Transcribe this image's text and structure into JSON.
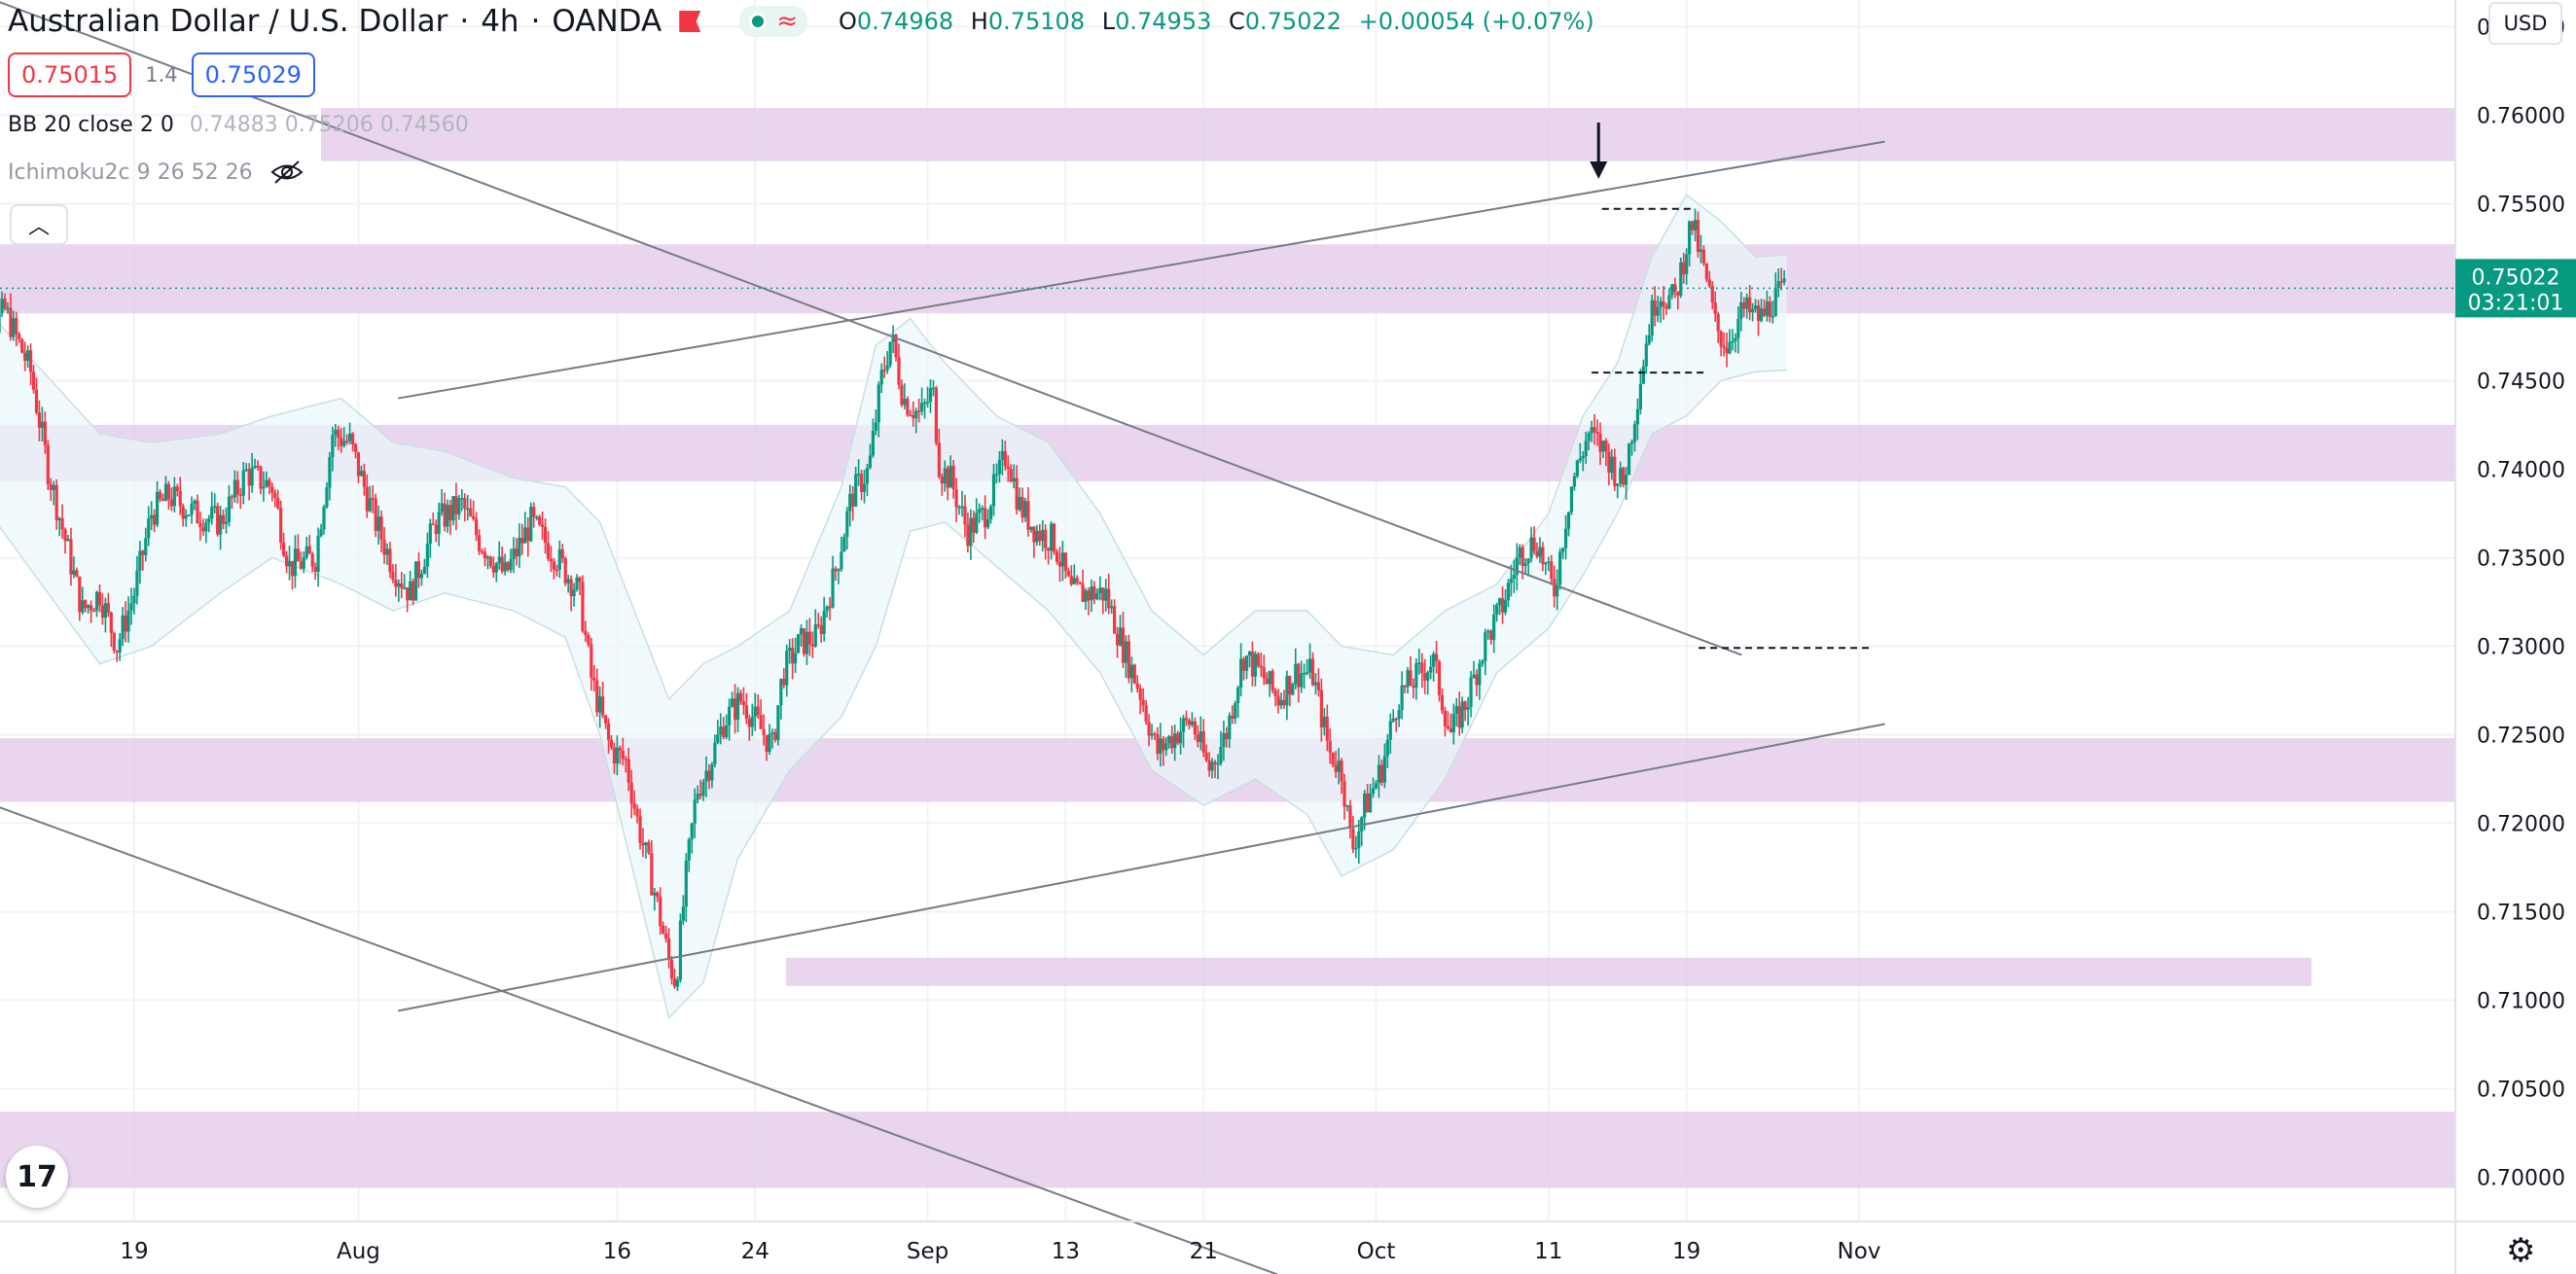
{
  "header": {
    "symbol": "Australian Dollar / U.S. Dollar",
    "interval": "4h",
    "broker": "OANDA",
    "ohlc": {
      "o_label": "O",
      "o": "0.74968",
      "h_label": "H",
      "h": "0.75108",
      "l_label": "L",
      "l": "0.74953",
      "c_label": "C",
      "c": "0.75022",
      "change": "+0.00054 (+0.07%)"
    },
    "sell_price": "0.75015",
    "spread": "1.4",
    "buy_price": "0.75029"
  },
  "indicators": {
    "bb_label": "BB 20 close 2 0",
    "bb_values": "0.74883  0.75206  0.74560",
    "ichimoku_label": "Ichimoku2c 9 26 52 26",
    "visibility_icon": "eye-off-icon"
  },
  "price_axis": {
    "currency": "USD",
    "last_price": "0.75022",
    "countdown": "03:21:01"
  },
  "colors": {
    "up": "#089981",
    "down": "#f23645",
    "zone": "#e1c6e8",
    "band": "#e9f7f9",
    "trendline": "#787b86"
  },
  "chart_data": {
    "type": "candlestick",
    "symbol": "AUD/USD",
    "timeframe": "4h",
    "ylim": [
      0.6975,
      0.7665
    ],
    "y_ticks": [
      "0.76500",
      "0.76000",
      "0.75500",
      "0.75000",
      "0.74500",
      "0.74000",
      "0.73500",
      "0.73000",
      "0.72500",
      "0.72000",
      "0.71500",
      "0.71000",
      "0.70500",
      "0.70000"
    ],
    "x_ticks": [
      "19",
      "Aug",
      "16",
      "24",
      "Sep",
      "13",
      "21",
      "Oct",
      "11",
      "19",
      "Nov"
    ],
    "last_price": 0.75022,
    "zones": [
      {
        "from": 0.7574,
        "to": 0.7604
      },
      {
        "from": 0.7488,
        "to": 0.7527
      },
      {
        "from": 0.7393,
        "to": 0.7425
      },
      {
        "from": 0.7212,
        "to": 0.7248
      },
      {
        "from": 0.7108,
        "to": 0.7124
      },
      {
        "from": 0.6994,
        "to": 0.7037
      }
    ],
    "trendlines": [
      {
        "from_day": -7.5,
        "from_price": 0.767,
        "to_day": 95.2,
        "to_price": 0.7295
      },
      {
        "from_day": -7.5,
        "from_price": 0.7215,
        "to_day": 68.3,
        "to_price": 0.6945
      },
      {
        "from_day": 17.3,
        "from_price": 0.7094,
        "to_day": 103.5,
        "to_price": 0.7256
      },
      {
        "from_day": 17.3,
        "from_price": 0.744,
        "to_day": 103.5,
        "to_price": 0.7585
      }
    ],
    "levels": [
      {
        "from_day": 87.1,
        "to_day": 92.4,
        "price": 0.7547
      },
      {
        "from_day": 86.5,
        "to_day": 93.1,
        "price": 0.74545
      },
      {
        "from_day": 92.7,
        "to_day": 102.8,
        "price": 0.7299
      }
    ],
    "arrow_day": 86.9,
    "arrow_price": 0.7565,
    "day_origin": "Jul 17",
    "anchors": [
      [
        -7.5,
        0.7445
      ],
      [
        -6.5,
        0.7475
      ],
      [
        -5.5,
        0.749
      ],
      [
        -4,
        0.7455
      ],
      [
        -3,
        0.74
      ],
      [
        -2,
        0.736
      ],
      [
        -1,
        0.732
      ],
      [
        0,
        0.733
      ],
      [
        1,
        0.73
      ],
      [
        2,
        0.733
      ],
      [
        3,
        0.7375
      ],
      [
        4,
        0.7385
      ],
      [
        5.5,
        0.7375
      ],
      [
        7,
        0.737
      ],
      [
        8.5,
        0.7398
      ],
      [
        10,
        0.739
      ],
      [
        11,
        0.7345
      ],
      [
        12.5,
        0.735
      ],
      [
        13.5,
        0.742
      ],
      [
        14.5,
        0.7415
      ],
      [
        16,
        0.737
      ],
      [
        17,
        0.7345
      ],
      [
        18,
        0.733
      ],
      [
        19.5,
        0.737
      ],
      [
        21,
        0.738
      ],
      [
        22,
        0.736
      ],
      [
        23.5,
        0.734
      ],
      [
        25,
        0.737
      ],
      [
        26.5,
        0.735
      ],
      [
        27.8,
        0.733
      ],
      [
        28.5,
        0.7282
      ],
      [
        29.6,
        0.7242
      ],
      [
        30.5,
        0.7235
      ],
      [
        31.2,
        0.72
      ],
      [
        32.2,
        0.716
      ],
      [
        33,
        0.7122
      ],
      [
        33.4,
        0.711
      ],
      [
        34,
        0.717
      ],
      [
        34.6,
        0.7218
      ],
      [
        35.3,
        0.7232
      ],
      [
        36.2,
        0.7258
      ],
      [
        37.2,
        0.727
      ],
      [
        38,
        0.7258
      ],
      [
        39,
        0.7243
      ],
      [
        39.6,
        0.7285
      ],
      [
        40.6,
        0.7302
      ],
      [
        41.6,
        0.7305
      ],
      [
        42.6,
        0.734
      ],
      [
        43.6,
        0.7385
      ],
      [
        44.6,
        0.74
      ],
      [
        45.3,
        0.745
      ],
      [
        45.9,
        0.7475
      ],
      [
        46.6,
        0.744
      ],
      [
        47.6,
        0.743
      ],
      [
        48.3,
        0.7445
      ],
      [
        48.7,
        0.74
      ],
      [
        49.3,
        0.7395
      ],
      [
        50.3,
        0.7365
      ],
      [
        51.3,
        0.7375
      ],
      [
        51.9,
        0.739
      ],
      [
        52.6,
        0.741
      ],
      [
        53.3,
        0.738
      ],
      [
        54.3,
        0.7365
      ],
      [
        55.3,
        0.736
      ],
      [
        56.3,
        0.733
      ],
      [
        57.3,
        0.733
      ],
      [
        58.3,
        0.733
      ],
      [
        59.3,
        0.73
      ],
      [
        60.3,
        0.7275
      ],
      [
        61.3,
        0.724
      ],
      [
        62.3,
        0.725
      ],
      [
        63.3,
        0.7258
      ],
      [
        64.3,
        0.723
      ],
      [
        65.3,
        0.725
      ],
      [
        66.3,
        0.7295
      ],
      [
        67.3,
        0.7285
      ],
      [
        68.3,
        0.727
      ],
      [
        69.3,
        0.7285
      ],
      [
        70.3,
        0.7285
      ],
      [
        71.3,
        0.724
      ],
      [
        72,
        0.723
      ],
      [
        72.6,
        0.7185
      ],
      [
        73.3,
        0.7208
      ],
      [
        74.3,
        0.723
      ],
      [
        75.3,
        0.7272
      ],
      [
        76.3,
        0.7282
      ],
      [
        77.3,
        0.7292
      ],
      [
        78.3,
        0.725
      ],
      [
        79.3,
        0.727
      ],
      [
        80.3,
        0.7302
      ],
      [
        81.3,
        0.7322
      ],
      [
        82.3,
        0.7352
      ],
      [
        83.3,
        0.736
      ],
      [
        84.3,
        0.733
      ],
      [
        85.3,
        0.739
      ],
      [
        86.3,
        0.742
      ],
      [
        87.3,
        0.741
      ],
      [
        88.3,
        0.739
      ],
      [
        89.3,
        0.745
      ],
      [
        89.8,
        0.748
      ],
      [
        90.3,
        0.75
      ],
      [
        91.3,
        0.7495
      ],
      [
        92.3,
        0.754
      ],
      [
        93.3,
        0.75
      ],
      [
        93.7,
        0.748
      ],
      [
        94.3,
        0.747
      ],
      [
        95.3,
        0.749
      ],
      [
        96.3,
        0.7485
      ],
      [
        97,
        0.7495
      ],
      [
        97.8,
        0.7502
      ]
    ],
    "band_upper": [
      [
        -7.5,
        0.75
      ],
      [
        0,
        0.742
      ],
      [
        3,
        0.7415
      ],
      [
        7,
        0.742
      ],
      [
        10,
        0.743
      ],
      [
        14,
        0.744
      ],
      [
        17,
        0.7415
      ],
      [
        20,
        0.741
      ],
      [
        24,
        0.7395
      ],
      [
        27,
        0.739
      ],
      [
        29,
        0.737
      ],
      [
        31,
        0.732
      ],
      [
        33,
        0.727
      ],
      [
        35,
        0.729
      ],
      [
        37,
        0.73
      ],
      [
        40,
        0.732
      ],
      [
        43,
        0.739
      ],
      [
        45,
        0.747
      ],
      [
        47,
        0.7485
      ],
      [
        49,
        0.746
      ],
      [
        52,
        0.743
      ],
      [
        55,
        0.7415
      ],
      [
        58,
        0.7375
      ],
      [
        61,
        0.732
      ],
      [
        64,
        0.7295
      ],
      [
        67,
        0.732
      ],
      [
        70,
        0.732
      ],
      [
        72,
        0.73
      ],
      [
        75,
        0.7295
      ],
      [
        78,
        0.732
      ],
      [
        81,
        0.7335
      ],
      [
        84,
        0.7375
      ],
      [
        86,
        0.743
      ],
      [
        88,
        0.746
      ],
      [
        90,
        0.752
      ],
      [
        92,
        0.7555
      ],
      [
        94,
        0.754
      ],
      [
        96,
        0.752
      ],
      [
        97.8,
        0.7521
      ]
    ],
    "band_lower": [
      [
        -7.5,
        0.739
      ],
      [
        0,
        0.729
      ],
      [
        3,
        0.73
      ],
      [
        7,
        0.733
      ],
      [
        10,
        0.735
      ],
      [
        14,
        0.7335
      ],
      [
        17,
        0.732
      ],
      [
        20,
        0.733
      ],
      [
        24,
        0.732
      ],
      [
        27,
        0.7305
      ],
      [
        29,
        0.725
      ],
      [
        31,
        0.717
      ],
      [
        33,
        0.709
      ],
      [
        35,
        0.711
      ],
      [
        37,
        0.718
      ],
      [
        40,
        0.723
      ],
      [
        43,
        0.726
      ],
      [
        45,
        0.73
      ],
      [
        47,
        0.7365
      ],
      [
        49,
        0.737
      ],
      [
        52,
        0.7345
      ],
      [
        55,
        0.732
      ],
      [
        58,
        0.7285
      ],
      [
        61,
        0.723
      ],
      [
        64,
        0.721
      ],
      [
        67,
        0.7225
      ],
      [
        70,
        0.7205
      ],
      [
        72,
        0.717
      ],
      [
        75,
        0.7185
      ],
      [
        78,
        0.7225
      ],
      [
        81,
        0.7285
      ],
      [
        84,
        0.731
      ],
      [
        86,
        0.734
      ],
      [
        88,
        0.7375
      ],
      [
        90,
        0.742
      ],
      [
        92,
        0.743
      ],
      [
        94,
        0.745
      ],
      [
        96,
        0.7455
      ],
      [
        97.8,
        0.7456
      ]
    ]
  }
}
